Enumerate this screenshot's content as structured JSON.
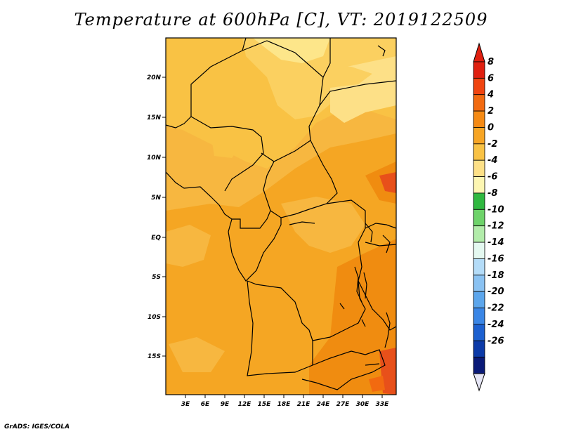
{
  "title": "Temperature at 600hPa [C], VT: 2019122509",
  "footer": "GrADS: IGES/COLA",
  "map": {
    "lon_labels": [
      "3E",
      "6E",
      "9E",
      "12E",
      "15E",
      "18E",
      "21E",
      "24E",
      "27E",
      "30E",
      "33E"
    ],
    "lat_labels": [
      "20N",
      "15N",
      "10N",
      "5N",
      "EQ",
      "5S",
      "10S",
      "15S"
    ],
    "colors": {
      "frame": "#000000",
      "field_warm": "#f5a623",
      "field_mid": "#f7b740",
      "field_light": "#fbd060",
      "field_pale": "#fde68a",
      "field_deep": "#f08c10",
      "field_red": "#e8501a"
    }
  },
  "colorbar": {
    "labels": [
      "8",
      "6",
      "4",
      "2",
      "0",
      "-2",
      "-4",
      "-6",
      "-8",
      "-10",
      "-12",
      "-14",
      "-16",
      "-18",
      "-20",
      "-22",
      "-24",
      "-26"
    ],
    "colors": [
      "#e02010",
      "#f04410",
      "#f26a10",
      "#f58a14",
      "#f7a524",
      "#f9c244",
      "#fde087",
      "#fdf6b2",
      "#30b840",
      "#6ed36a",
      "#b2ecaa",
      "#e4f8f0",
      "#b4dcf8",
      "#8ac2f2",
      "#5ca6ec",
      "#3a86e6",
      "#1c60d0",
      "#0c3aa8",
      "#0a1a78"
    ],
    "top_arrow": "#e02010",
    "bottom_arrow": "#e6e6f6"
  }
}
